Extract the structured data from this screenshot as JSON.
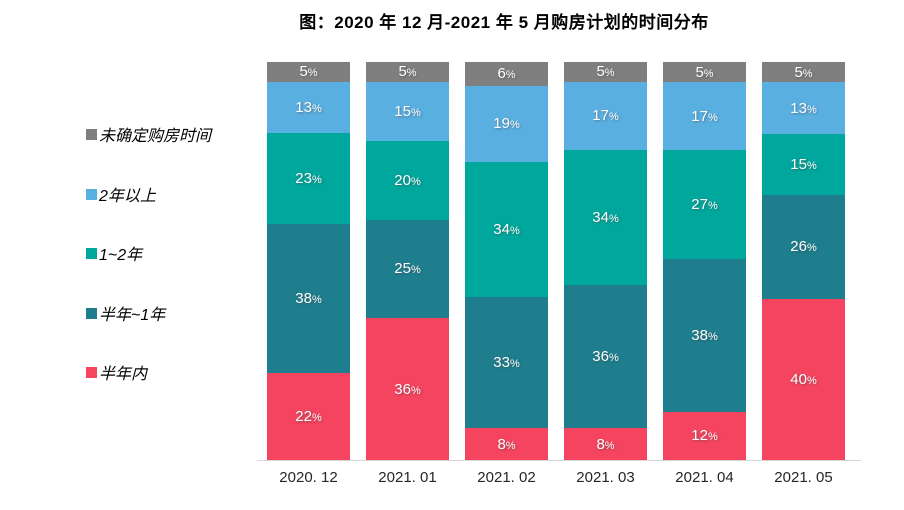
{
  "title": {
    "text": "图：2020 年 12 月-2021 年 5 月购房计划的时间分布"
  },
  "legend": {
    "items": [
      {
        "label": "未确定购房时间",
        "color": "#7f7f7f"
      },
      {
        "label": "2年以上",
        "color": "#5aafe1"
      },
      {
        "label": "1~2年",
        "color": "#00a79c"
      },
      {
        "label": "半年~1年",
        "color": "#1e7e8e"
      },
      {
        "label": "半年内",
        "color": "#f5445f"
      }
    ]
  },
  "chart_data": {
    "type": "bar",
    "stacked": "100%",
    "title": "图：2020 年 12 月-2021 年 5 月购房计划的时间分布",
    "categories": [
      "2020. 12",
      "2021. 01",
      "2021. 02",
      "2021. 03",
      "2021. 04",
      "2021. 05"
    ],
    "series": [
      {
        "name": "半年内",
        "color": "#f5445f",
        "values": [
          22,
          36,
          8,
          8,
          12,
          40
        ]
      },
      {
        "name": "半年~1年",
        "color": "#1e7e8e",
        "values": [
          38,
          25,
          33,
          36,
          38,
          26
        ]
      },
      {
        "name": "1~2年",
        "color": "#00a79c",
        "values": [
          23,
          20,
          34,
          34,
          27,
          15
        ]
      },
      {
        "name": "2年以上",
        "color": "#5aafe1",
        "values": [
          13,
          15,
          19,
          17,
          17,
          13
        ]
      },
      {
        "name": "未确定购房时间",
        "color": "#7f7f7f",
        "values": [
          5,
          5,
          6,
          5,
          5,
          5
        ]
      }
    ],
    "value_suffix": "%",
    "data_labels": true,
    "legend_position": "left",
    "grid": false,
    "xlabel": "",
    "ylabel": "",
    "axis_line_color": "#d9d9d9"
  }
}
